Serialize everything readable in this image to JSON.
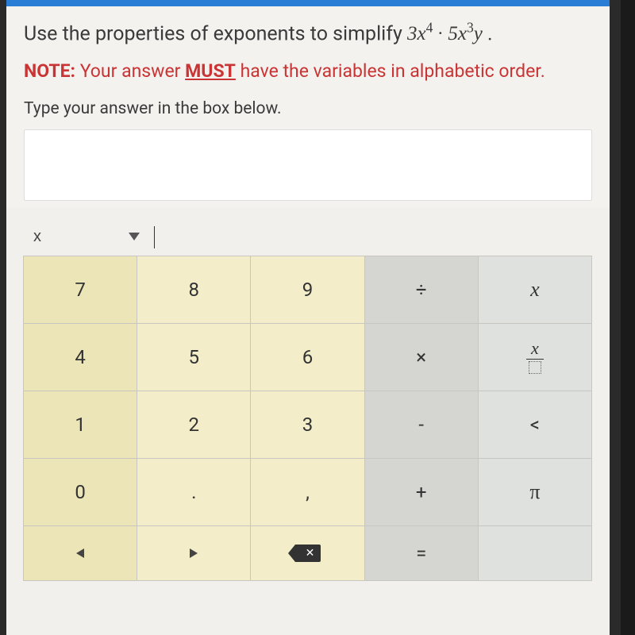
{
  "question": {
    "prefix": "Use the properties of exponents to simplify  ",
    "expr_a_coef": "3",
    "expr_a_var": "x",
    "expr_a_exp": "4",
    "dot": " · ",
    "expr_b_coef": "5",
    "expr_b_var": "x",
    "expr_b_exp": "3",
    "expr_b_var2": "y",
    "suffix": " ."
  },
  "note": {
    "label": "NOTE:",
    "pre": " Your answer ",
    "must": "MUST",
    "post": " have the variables in alphabetic order."
  },
  "instruction": "Type your answer in the box below.",
  "varrow": {
    "var": "x"
  },
  "keys": {
    "r1": [
      "7",
      "8",
      "9",
      "÷",
      "x"
    ],
    "r2": [
      "4",
      "5",
      "6",
      "×",
      "frac"
    ],
    "r3": [
      "1",
      "2",
      "3",
      "-",
      "<"
    ],
    "r4": [
      "0",
      ".",
      ",",
      "+",
      "π"
    ],
    "r5": [
      "◀",
      "▶",
      "⌫",
      "=",
      ""
    ]
  },
  "colors": {
    "num_bg": "#ece5b8",
    "num_light_bg": "#f3eec9",
    "op_bg": "#d5d6d2",
    "sym_bg": "#dfe1df",
    "border": "#c8c6c0",
    "note_red": "#c93434",
    "topbar": "#2a7dd4"
  }
}
